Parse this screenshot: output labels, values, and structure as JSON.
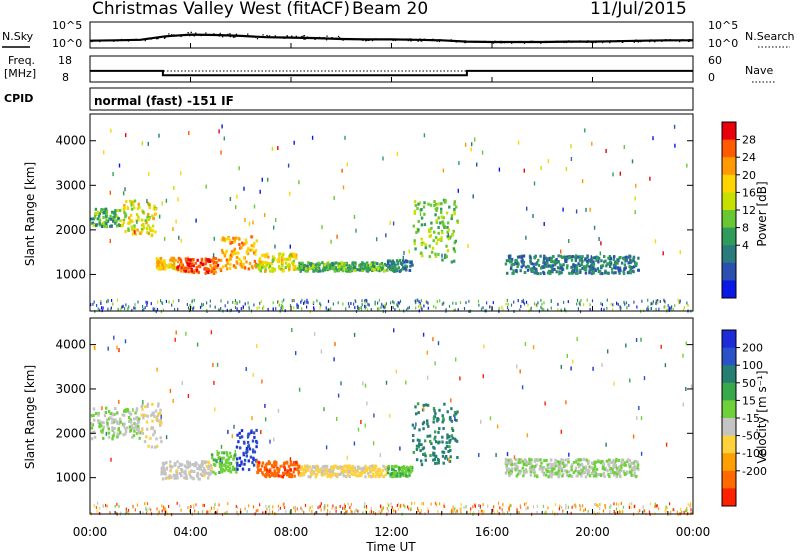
{
  "header": {
    "station": "Christmas Valley West (fitACF)",
    "beam": "Beam 20",
    "date": "11/Jul/2015"
  },
  "noise_panel": {
    "left_label": "N.Sky",
    "right_label": "N.Search",
    "ticks_left": [
      "10^5",
      "10^0"
    ],
    "ticks_right": [
      "10^5",
      "10^0"
    ]
  },
  "freq_panel": {
    "left_label_1": "Freq.",
    "left_label_2": "[MHz]",
    "right_label": "Nave",
    "ticks_left": [
      "18",
      "8"
    ],
    "ticks_right": [
      "60",
      "0"
    ]
  },
  "cpid": {
    "label": "CPID",
    "text": "normal (fast) -151 IF"
  },
  "colorbars": {
    "power": {
      "label": "Power [dB]",
      "ticks": [
        "28",
        "24",
        "20",
        "16",
        "12",
        "8",
        "4"
      ],
      "colors": [
        "#e8000b",
        "#ff5a00",
        "#ff9a00",
        "#ffd400",
        "#c8e000",
        "#69c832",
        "#2f9c5c",
        "#2b7a7e",
        "#2a4fb0",
        "#0a18e6"
      ]
    },
    "velocity": {
      "label": "Velocity [m s⁻¹]",
      "ticks": [
        "200",
        "100",
        "50",
        "15",
        "-15",
        "-50",
        "-100",
        "-200"
      ],
      "colors": [
        "#1e2bd8",
        "#2a52c8",
        "#267d72",
        "#39a84a",
        "#6fd13a",
        "#c4c4c4",
        "#ffd23c",
        "#ffa000",
        "#ff6a00",
        "#ff2000"
      ]
    }
  },
  "axes": {
    "ylabel": "Slant Range [km]",
    "yticks": [
      "4000",
      "3000",
      "2000",
      "1000"
    ],
    "xticks": [
      "00:00",
      "04:00",
      "08:00",
      "12:00",
      "16:00",
      "20:00",
      "00:00"
    ],
    "xlabel": "Time UT"
  },
  "chart_data": [
    {
      "type": "line",
      "name": "noise",
      "x_unit": "hours UT",
      "x": [
        0,
        1,
        2,
        3,
        4,
        5,
        6,
        7,
        8,
        9,
        10,
        11,
        12,
        13,
        14,
        15,
        16,
        17,
        18,
        19,
        20,
        21,
        22,
        23,
        24
      ],
      "n_sky_log10": [
        1.2,
        1.3,
        1.4,
        2.2,
        2.6,
        2.5,
        2.3,
        2.0,
        1.9,
        1.8,
        1.6,
        1.5,
        1.5,
        1.4,
        1.3,
        1.0,
        0.9,
        0.9,
        0.9,
        1.0,
        1.0,
        1.1,
        1.2,
        1.3,
        1.3
      ],
      "ylim": [
        0,
        5
      ]
    },
    {
      "type": "line",
      "name": "frequency",
      "x_unit": "hours UT",
      "x": [
        0,
        2.9,
        2.9,
        15.0,
        15.0,
        24
      ],
      "freq_mhz": [
        12.2,
        12.2,
        10.4,
        10.4,
        12.2,
        12.2
      ],
      "nave": [
        25,
        25,
        25,
        25,
        25,
        25
      ],
      "ylim_freq": [
        8,
        18
      ],
      "ylim_nave": [
        0,
        60
      ]
    },
    {
      "type": "heatmap",
      "name": "power",
      "x_unit": "hours UT",
      "y_unit": "km",
      "xlim": [
        0,
        24
      ],
      "ylim": [
        180,
        4600
      ],
      "clim": [
        0,
        30
      ],
      "echo_regions": [
        {
          "t0": 0.0,
          "t1": 1.2,
          "r0": 2100,
          "r1": 2500,
          "value": 12
        },
        {
          "t0": 1.2,
          "t1": 2.6,
          "r0": 1900,
          "r1": 2700,
          "value": 18
        },
        {
          "t0": 2.6,
          "t1": 3.4,
          "r0": 1150,
          "r1": 1400,
          "value": 20
        },
        {
          "t0": 3.4,
          "t1": 5.2,
          "r0": 1050,
          "r1": 1400,
          "value": 26
        },
        {
          "t0": 5.2,
          "t1": 6.6,
          "r0": 1150,
          "r1": 1900,
          "value": 22
        },
        {
          "t0": 6.6,
          "t1": 8.2,
          "r0": 1100,
          "r1": 1500,
          "value": 18
        },
        {
          "t0": 8.2,
          "t1": 11.8,
          "r0": 1100,
          "r1": 1300,
          "value": 12
        },
        {
          "t0": 11.8,
          "t1": 12.8,
          "r0": 1100,
          "r1": 1350,
          "value": 8
        },
        {
          "t0": 12.8,
          "t1": 14.6,
          "r0": 1300,
          "r1": 2700,
          "value": 14
        },
        {
          "t0": 16.5,
          "t1": 21.8,
          "r0": 1050,
          "r1": 1450,
          "value": 8
        }
      ]
    },
    {
      "type": "heatmap",
      "name": "velocity",
      "x_unit": "hours UT",
      "y_unit": "km",
      "xlim": [
        0,
        24
      ],
      "ylim": [
        180,
        4600
      ],
      "clim": [
        -250,
        250
      ],
      "echo_regions": [
        {
          "t0": 0.0,
          "t1": 2.0,
          "r0": 1900,
          "r1": 2600,
          "value": 0
        },
        {
          "t0": 2.0,
          "t1": 2.8,
          "r0": 1700,
          "r1": 2700,
          "value": -40
        },
        {
          "t0": 2.8,
          "t1": 4.8,
          "r0": 1000,
          "r1": 1400,
          "value": -30
        },
        {
          "t0": 4.8,
          "t1": 5.8,
          "r0": 1100,
          "r1": 1600,
          "value": 30
        },
        {
          "t0": 5.8,
          "t1": 6.6,
          "r0": 1200,
          "r1": 2100,
          "value": 200
        },
        {
          "t0": 6.6,
          "t1": 8.3,
          "r0": 1050,
          "r1": 1400,
          "value": -180
        },
        {
          "t0": 8.3,
          "t1": 11.8,
          "r0": 1050,
          "r1": 1300,
          "value": -60
        },
        {
          "t0": 11.8,
          "t1": 12.8,
          "r0": 1050,
          "r1": 1300,
          "value": 40
        },
        {
          "t0": 12.8,
          "t1": 14.6,
          "r0": 1300,
          "r1": 2700,
          "value": 120
        },
        {
          "t0": 16.5,
          "t1": 21.8,
          "r0": 1050,
          "r1": 1450,
          "value": 0
        }
      ]
    }
  ]
}
